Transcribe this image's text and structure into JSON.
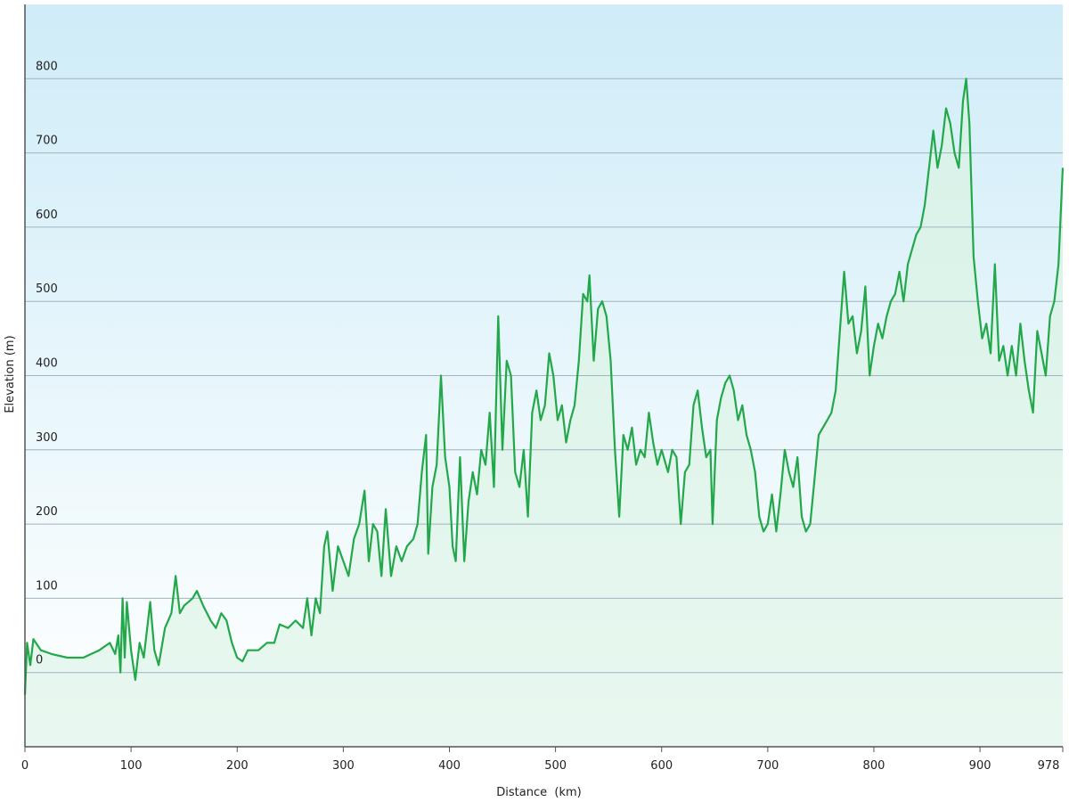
{
  "chart_data": {
    "type": "line",
    "x_label": "Distance  (km)",
    "y_label": "Elevation (m)",
    "color": "#22a84a",
    "xlim": [
      0,
      978
    ],
    "xticks": [
      0,
      100,
      200,
      300,
      400,
      500,
      600,
      700,
      800,
      900,
      978
    ],
    "ylim": [
      -100,
      900
    ],
    "yticks": [
      0,
      100,
      200,
      300,
      400,
      500,
      600,
      700,
      800
    ],
    "grid": true,
    "x": [
      0,
      2,
      5,
      8,
      15,
      25,
      40,
      55,
      70,
      80,
      85,
      88,
      90,
      92,
      94,
      96,
      100,
      104,
      108,
      112,
      118,
      122,
      126,
      132,
      138,
      142,
      146,
      150,
      158,
      162,
      168,
      175,
      180,
      185,
      190,
      195,
      200,
      205,
      210,
      220,
      228,
      235,
      240,
      248,
      255,
      262,
      266,
      270,
      274,
      278,
      282,
      285,
      290,
      295,
      300,
      305,
      310,
      315,
      320,
      324,
      328,
      332,
      336,
      340,
      345,
      350,
      355,
      360,
      366,
      370,
      374,
      378,
      380,
      384,
      388,
      392,
      396,
      400,
      403,
      406,
      410,
      414,
      418,
      422,
      426,
      430,
      434,
      438,
      442,
      446,
      450,
      454,
      458,
      462,
      466,
      470,
      474,
      478,
      482,
      486,
      490,
      494,
      498,
      502,
      506,
      510,
      514,
      518,
      522,
      526,
      530,
      532,
      536,
      540,
      544,
      548,
      552,
      556,
      560,
      564,
      568,
      572,
      576,
      580,
      584,
      588,
      592,
      596,
      600,
      606,
      610,
      614,
      618,
      622,
      626,
      630,
      634,
      638,
      642,
      646,
      648,
      652,
      656,
      660,
      664,
      668,
      672,
      676,
      680,
      684,
      688,
      692,
      696,
      700,
      704,
      708,
      712,
      716,
      720,
      724,
      728,
      732,
      736,
      740,
      744,
      748,
      752,
      756,
      760,
      764,
      768,
      772,
      776,
      780,
      784,
      788,
      792,
      796,
      800,
      804,
      808,
      812,
      816,
      820,
      824,
      828,
      832,
      836,
      840,
      844,
      848,
      852,
      856,
      860,
      864,
      868,
      872,
      876,
      880,
      884,
      887,
      890,
      894,
      898,
      902,
      906,
      910,
      914,
      918,
      922,
      926,
      930,
      934,
      938,
      942,
      946,
      950,
      954,
      958,
      962,
      966,
      970,
      974,
      978
    ],
    "values": [
      -30,
      40,
      10,
      45,
      30,
      25,
      20,
      20,
      30,
      40,
      25,
      50,
      0,
      100,
      20,
      95,
      30,
      -10,
      40,
      20,
      95,
      30,
      10,
      60,
      80,
      130,
      80,
      90,
      100,
      110,
      90,
      70,
      60,
      80,
      70,
      40,
      20,
      15,
      30,
      30,
      40,
      40,
      65,
      60,
      70,
      60,
      100,
      50,
      100,
      80,
      170,
      190,
      110,
      170,
      150,
      130,
      180,
      200,
      245,
      150,
      200,
      190,
      130,
      220,
      130,
      170,
      150,
      170,
      180,
      200,
      270,
      320,
      160,
      250,
      280,
      400,
      290,
      250,
      170,
      150,
      290,
      150,
      230,
      270,
      240,
      300,
      280,
      350,
      250,
      480,
      300,
      420,
      400,
      270,
      250,
      300,
      210,
      350,
      380,
      340,
      360,
      430,
      400,
      340,
      360,
      310,
      340,
      360,
      420,
      510,
      500,
      535,
      420,
      490,
      500,
      480,
      420,
      300,
      210,
      320,
      300,
      330,
      280,
      300,
      290,
      350,
      310,
      280,
      300,
      270,
      300,
      290,
      200,
      270,
      280,
      360,
      380,
      330,
      290,
      300,
      200,
      340,
      370,
      390,
      400,
      380,
      340,
      360,
      320,
      300,
      270,
      210,
      190,
      200,
      240,
      190,
      240,
      300,
      270,
      250,
      290,
      210,
      190,
      200,
      260,
      320,
      330,
      340,
      350,
      380,
      460,
      540,
      470,
      480,
      430,
      460,
      520,
      400,
      440,
      470,
      450,
      480,
      500,
      510,
      540,
      500,
      550,
      570,
      590,
      600,
      630,
      680,
      730,
      680,
      710,
      760,
      740,
      700,
      680,
      770,
      800,
      740,
      560,
      500,
      450,
      470,
      430,
      550,
      420,
      440,
      400,
      440,
      400,
      470,
      420,
      380,
      350,
      460,
      430,
      400,
      480,
      500,
      550,
      680
    ]
  }
}
